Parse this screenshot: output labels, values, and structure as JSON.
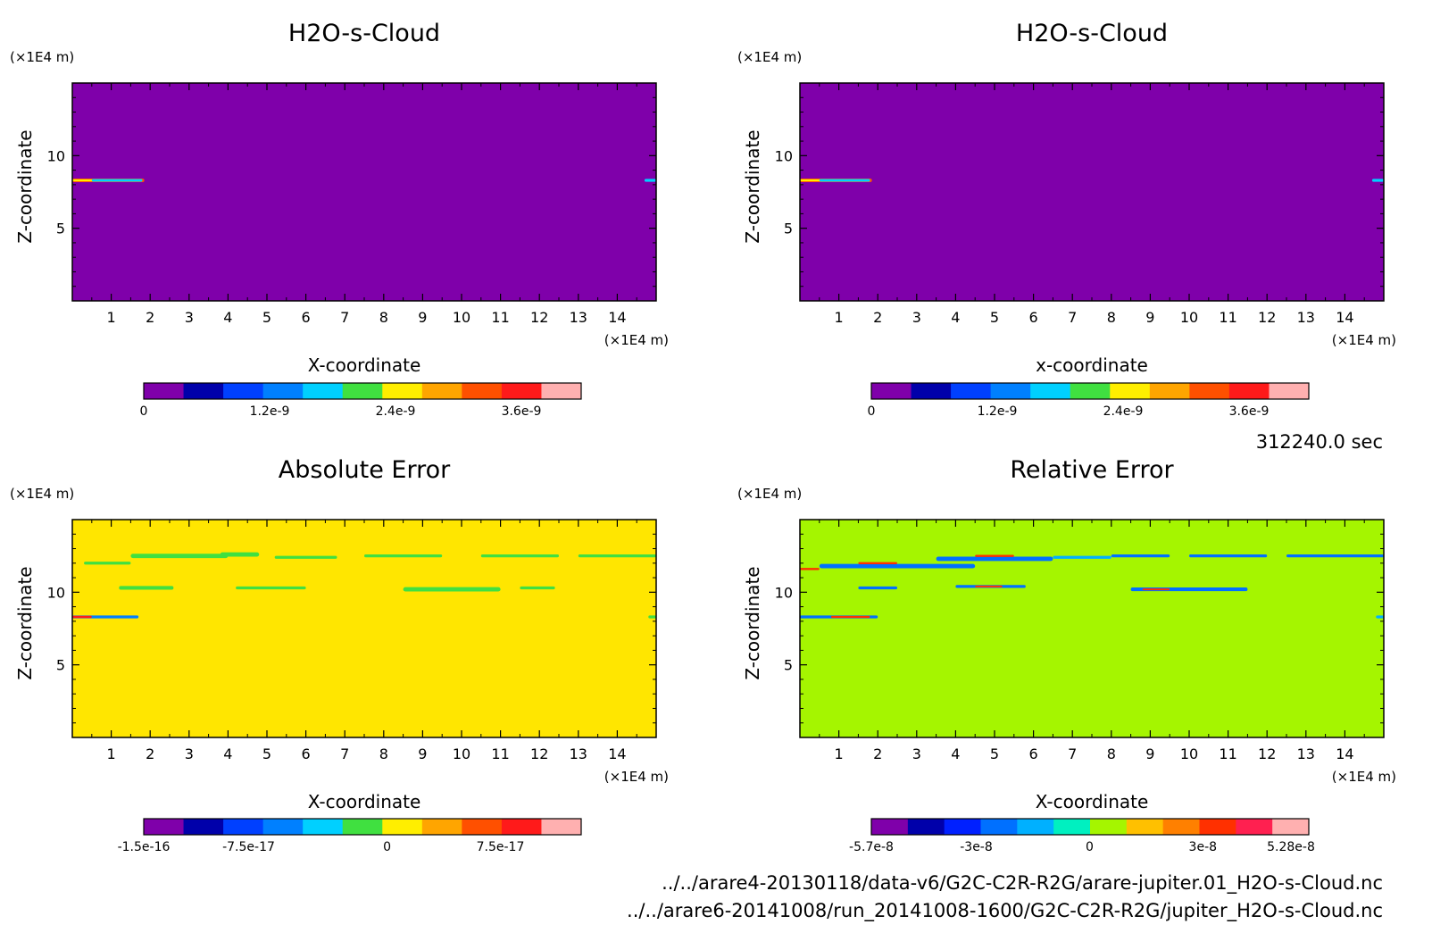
{
  "time_label": "312240.0 sec",
  "files": [
    "../../arare4-20130118/data-v6/G2C-C2R-R2G/arare-jupiter.01_H2O-s-Cloud.nc",
    "../../arare6-20141008/run_20141008-1600/G2C-C2R-R2G/jupiter_H2O-s-Cloud.nc"
  ],
  "chart_data": [
    {
      "type": "heatmap",
      "title": "H2O-s-Cloud",
      "xlabel": "X-coordinate",
      "ylabel": "Z-coordinate",
      "x_unit": "(×1E4 m)",
      "y_unit": "(×1E4 m)",
      "xlim": [
        0,
        15
      ],
      "ylim": [
        0,
        15
      ],
      "x_ticks": [
        "1",
        "2",
        "3",
        "4",
        "5",
        "6",
        "7",
        "8",
        "9",
        "10",
        "11",
        "12",
        "13",
        "14"
      ],
      "y_ticks": [
        "5",
        "10"
      ],
      "background_color": "#7f00aa",
      "colorbar": {
        "colors": [
          "#7f00aa",
          "#0000aa",
          "#0040ff",
          "#0080ff",
          "#00d0ff",
          "#40e040",
          "#ffee00",
          "#ffa500",
          "#ff5000",
          "#ff1a1a",
          "#ffb0b0"
        ],
        "tick_labels": [
          "0",
          "1.2e-9",
          "2.4e-9",
          "3.6e-9"
        ],
        "tick_fractions": [
          0,
          0.3,
          0.6,
          0.9
        ]
      },
      "features": [
        {
          "x0": 0,
          "x1": 1.85,
          "z": 8.3,
          "color": "#ff5000",
          "thickness": 0.25
        },
        {
          "x0": 0,
          "x1": 1.5,
          "z": 8.3,
          "color": "#ffee00",
          "thickness": 0.14
        },
        {
          "x0": 0.5,
          "x1": 1.8,
          "z": 8.3,
          "color": "#00d0ff",
          "thickness": 0.18
        },
        {
          "x0": 14.7,
          "x1": 15,
          "z": 8.3,
          "color": "#00d0ff",
          "thickness": 0.2
        }
      ]
    },
    {
      "type": "heatmap",
      "title": "H2O-s-Cloud",
      "xlabel": "x-coordinate",
      "ylabel": "Z-coordinate",
      "x_unit": "(×1E4 m)",
      "y_unit": "(×1E4 m)",
      "xlim": [
        0,
        15
      ],
      "ylim": [
        0,
        15
      ],
      "x_ticks": [
        "1",
        "2",
        "3",
        "4",
        "5",
        "6",
        "7",
        "8",
        "9",
        "10",
        "11",
        "12",
        "13",
        "14"
      ],
      "y_ticks": [
        "5",
        "10"
      ],
      "background_color": "#7f00aa",
      "colorbar": {
        "colors": [
          "#7f00aa",
          "#0000aa",
          "#0040ff",
          "#0080ff",
          "#00d0ff",
          "#40e040",
          "#ffee00",
          "#ffa500",
          "#ff5000",
          "#ff1a1a",
          "#ffb0b0"
        ],
        "tick_labels": [
          "0",
          "1.2e-9",
          "2.4e-9",
          "3.6e-9"
        ],
        "tick_fractions": [
          0,
          0.3,
          0.6,
          0.9
        ]
      },
      "features": [
        {
          "x0": 0,
          "x1": 1.85,
          "z": 8.3,
          "color": "#ff5000",
          "thickness": 0.25
        },
        {
          "x0": 0,
          "x1": 1.5,
          "z": 8.3,
          "color": "#ffee00",
          "thickness": 0.14
        },
        {
          "x0": 0.5,
          "x1": 1.8,
          "z": 8.3,
          "color": "#00d0ff",
          "thickness": 0.18
        },
        {
          "x0": 14.7,
          "x1": 15,
          "z": 8.3,
          "color": "#00d0ff",
          "thickness": 0.2
        }
      ]
    },
    {
      "type": "heatmap",
      "title": "Absolute Error",
      "xlabel": "X-coordinate",
      "ylabel": "Z-coordinate",
      "x_unit": "(×1E4 m)",
      "y_unit": "(×1E4 m)",
      "xlim": [
        0,
        15
      ],
      "ylim": [
        0,
        15
      ],
      "x_ticks": [
        "1",
        "2",
        "3",
        "4",
        "5",
        "6",
        "7",
        "8",
        "9",
        "10",
        "11",
        "12",
        "13",
        "14"
      ],
      "y_ticks": [
        "5",
        "10"
      ],
      "background_color": "#ffe600",
      "colorbar": {
        "colors": [
          "#7f00aa",
          "#0000aa",
          "#0040ff",
          "#0080ff",
          "#00d0ff",
          "#40e040",
          "#ffee00",
          "#ffa500",
          "#ff5000",
          "#ff1a1a",
          "#ffb0b0"
        ],
        "tick_labels": [
          "-1.5e-16",
          "-7.5e-17",
          "0",
          "7.5e-17"
        ],
        "tick_fractions": [
          0,
          0.25,
          0.58,
          0.85
        ]
      },
      "features": [
        {
          "x0": 0.3,
          "x1": 1.5,
          "z": 12.0,
          "color": "#40e040",
          "thickness": 0.2
        },
        {
          "x0": 1.5,
          "x1": 4.0,
          "z": 12.5,
          "color": "#40e040",
          "thickness": 0.3
        },
        {
          "x0": 3.8,
          "x1": 4.8,
          "z": 12.6,
          "color": "#40e040",
          "thickness": 0.3
        },
        {
          "x0": 5.2,
          "x1": 6.8,
          "z": 12.4,
          "color": "#40e040",
          "thickness": 0.2
        },
        {
          "x0": 7.5,
          "x1": 9.5,
          "z": 12.5,
          "color": "#40e040",
          "thickness": 0.2
        },
        {
          "x0": 10.5,
          "x1": 12.5,
          "z": 12.5,
          "color": "#40e040",
          "thickness": 0.2
        },
        {
          "x0": 13.0,
          "x1": 15.0,
          "z": 12.5,
          "color": "#40e040",
          "thickness": 0.2
        },
        {
          "x0": 1.2,
          "x1": 2.6,
          "z": 10.3,
          "color": "#40e040",
          "thickness": 0.25
        },
        {
          "x0": 4.2,
          "x1": 6.0,
          "z": 10.3,
          "color": "#40e040",
          "thickness": 0.2
        },
        {
          "x0": 8.5,
          "x1": 11.0,
          "z": 10.2,
          "color": "#40e040",
          "thickness": 0.3
        },
        {
          "x0": 11.5,
          "x1": 12.4,
          "z": 10.3,
          "color": "#40e040",
          "thickness": 0.2
        },
        {
          "x0": 0.0,
          "x1": 1.7,
          "z": 8.3,
          "color": "#0080ff",
          "thickness": 0.2
        },
        {
          "x0": 0.0,
          "x1": 0.5,
          "z": 8.3,
          "color": "#ff1a1a",
          "thickness": 0.15
        },
        {
          "x0": 14.8,
          "x1": 15.0,
          "z": 8.3,
          "color": "#40e040",
          "thickness": 0.2
        }
      ]
    },
    {
      "type": "heatmap",
      "title": "Relative Error",
      "xlabel": "X-coordinate",
      "ylabel": "Z-coordinate",
      "x_unit": "(×1E4 m)",
      "y_unit": "(×1E4 m)",
      "xlim": [
        0,
        15
      ],
      "ylim": [
        0,
        15
      ],
      "x_ticks": [
        "1",
        "2",
        "3",
        "4",
        "5",
        "6",
        "7",
        "8",
        "9",
        "10",
        "11",
        "12",
        "13",
        "14"
      ],
      "y_ticks": [
        "5",
        "10"
      ],
      "background_color": "#a5f500",
      "colorbar": {
        "colors": [
          "#7f00aa",
          "#0000aa",
          "#0020ff",
          "#0070ff",
          "#00b0ff",
          "#00f0c0",
          "#a5f500",
          "#ffc000",
          "#ff8000",
          "#ff3000",
          "#ff2050",
          "#ffb0b0"
        ],
        "tick_labels": [
          "-5.7e-8",
          "-3e-8",
          "0",
          "3e-8",
          "5.28e-8"
        ],
        "tick_fractions": [
          0,
          0.25,
          0.52,
          0.79,
          1.0
        ]
      },
      "features": [
        {
          "x0": 0.5,
          "x1": 4.5,
          "z": 11.8,
          "color": "#0070ff",
          "thickness": 0.3
        },
        {
          "x0": 1.5,
          "x1": 2.5,
          "z": 12.0,
          "color": "#ff3000",
          "thickness": 0.15
        },
        {
          "x0": 3.5,
          "x1": 6.5,
          "z": 12.3,
          "color": "#0070ff",
          "thickness": 0.3
        },
        {
          "x0": 4.5,
          "x1": 5.5,
          "z": 12.5,
          "color": "#ff3000",
          "thickness": 0.15
        },
        {
          "x0": 6.5,
          "x1": 8.0,
          "z": 12.4,
          "color": "#00b0ff",
          "thickness": 0.2
        },
        {
          "x0": 8.0,
          "x1": 9.5,
          "z": 12.5,
          "color": "#0070ff",
          "thickness": 0.2
        },
        {
          "x0": 10.0,
          "x1": 12.0,
          "z": 12.5,
          "color": "#0070ff",
          "thickness": 0.2
        },
        {
          "x0": 12.5,
          "x1": 15.0,
          "z": 12.5,
          "color": "#0070ff",
          "thickness": 0.2
        },
        {
          "x0": 0.0,
          "x1": 0.5,
          "z": 11.6,
          "color": "#ff3000",
          "thickness": 0.15
        },
        {
          "x0": 1.5,
          "x1": 2.5,
          "z": 10.3,
          "color": "#0070ff",
          "thickness": 0.2
        },
        {
          "x0": 4.0,
          "x1": 5.8,
          "z": 10.4,
          "color": "#0070ff",
          "thickness": 0.2
        },
        {
          "x0": 4.5,
          "x1": 5.2,
          "z": 10.4,
          "color": "#ff3000",
          "thickness": 0.12
        },
        {
          "x0": 8.5,
          "x1": 11.5,
          "z": 10.2,
          "color": "#0070ff",
          "thickness": 0.25
        },
        {
          "x0": 8.8,
          "x1": 9.5,
          "z": 10.2,
          "color": "#ff3000",
          "thickness": 0.12
        },
        {
          "x0": 0.0,
          "x1": 2.0,
          "z": 8.3,
          "color": "#0070ff",
          "thickness": 0.2
        },
        {
          "x0": 0.8,
          "x1": 1.8,
          "z": 8.3,
          "color": "#ff3000",
          "thickness": 0.14
        },
        {
          "x0": 14.8,
          "x1": 15.0,
          "z": 8.3,
          "color": "#00b0ff",
          "thickness": 0.2
        }
      ]
    }
  ]
}
